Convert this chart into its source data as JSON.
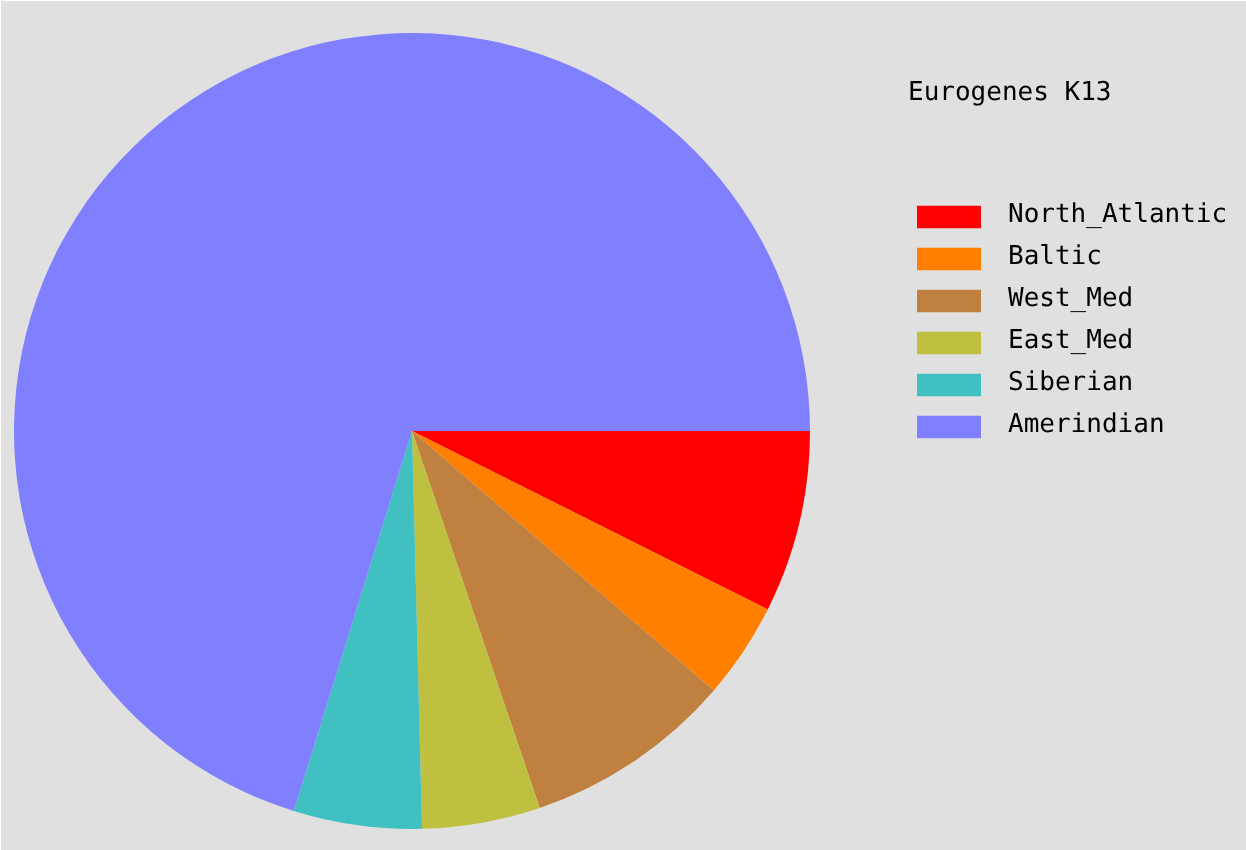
{
  "chart_data": {
    "type": "pie",
    "legend_title": "Eurogenes K13",
    "legend": "right",
    "categories": [
      "North_Atlantic",
      "Baltic",
      "West_Med",
      "East_Med",
      "Siberian",
      "Amerindian"
    ],
    "values": [
      7.4,
      3.9,
      8.5,
      4.8,
      5.2,
      70.2
    ],
    "colors": [
      "#ff0000",
      "#ff8000",
      "#c08040",
      "#c0c040",
      "#40c0c0",
      "#8080ff"
    ]
  }
}
